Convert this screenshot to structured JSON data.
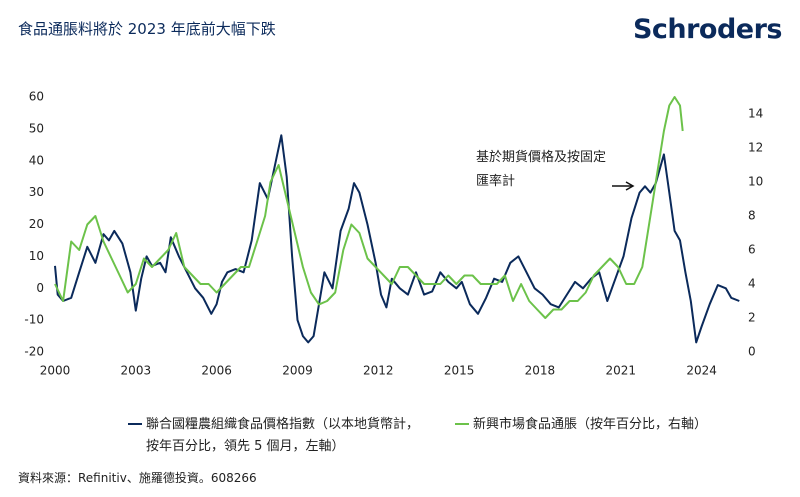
{
  "chart_data": {
    "type": "line",
    "title": "食品通脹料將於 2023 年底前大幅下跌",
    "brand": "Schroders",
    "annotation": "基於期貨價格及按固定匯率計",
    "source": "資料來源：Refinitiv、施羅德投資。608266",
    "xlim": [
      2000,
      2025.5
    ],
    "xticks": [
      2000,
      2003,
      2006,
      2009,
      2012,
      2015,
      2018,
      2021,
      2024
    ],
    "ylim": [
      -20,
      60
    ],
    "yticks": [
      -20,
      -10,
      0,
      10,
      20,
      30,
      40,
      50,
      60
    ],
    "y2lim": [
      0,
      15
    ],
    "y2ticks": [
      0,
      2,
      4,
      6,
      8,
      10,
      12,
      14
    ],
    "grid": false,
    "series": [
      {
        "name": "聯合國糧農組織食品價格指數（以本地貨幣計，按年百分比，領先 5 個月，左軸）",
        "color": "#0b2a5b",
        "x": [
          2000.0,
          2000.1,
          2000.3,
          2000.6,
          2000.9,
          2001.2,
          2001.5,
          2001.8,
          2002.0,
          2002.2,
          2002.5,
          2002.8,
          2003.0,
          2003.2,
          2003.4,
          2003.6,
          2003.9,
          2004.1,
          2004.3,
          2004.6,
          2004.9,
          2005.2,
          2005.5,
          2005.8,
          2006.0,
          2006.2,
          2006.4,
          2006.7,
          2007.0,
          2007.3,
          2007.6,
          2007.9,
          2008.2,
          2008.4,
          2008.6,
          2008.8,
          2009.0,
          2009.2,
          2009.4,
          2009.6,
          2009.8,
          2010.0,
          2010.3,
          2010.6,
          2010.9,
          2011.1,
          2011.3,
          2011.6,
          2011.9,
          2012.1,
          2012.3,
          2012.5,
          2012.8,
          2013.1,
          2013.4,
          2013.7,
          2014.0,
          2014.3,
          2014.6,
          2014.9,
          2015.1,
          2015.4,
          2015.7,
          2016.0,
          2016.3,
          2016.6,
          2016.9,
          2017.2,
          2017.5,
          2017.8,
          2018.1,
          2018.4,
          2018.7,
          2019.0,
          2019.3,
          2019.6,
          2019.9,
          2020.2,
          2020.5,
          2020.8,
          2021.1,
          2021.4,
          2021.7,
          2021.9,
          2022.1,
          2022.3,
          2022.6,
          2022.8,
          2023.0,
          2023.2,
          2023.4,
          2023.6,
          2023.8,
          2024.0,
          2024.3,
          2024.6,
          2024.9,
          2025.1,
          2025.4
        ],
        "values": [
          7,
          -2,
          -4,
          -3,
          5,
          13,
          8,
          17,
          15,
          18,
          14,
          5,
          -7,
          3,
          10,
          7,
          8,
          5,
          16,
          10,
          5,
          0,
          -3,
          -8,
          -5,
          2,
          5,
          6,
          5,
          15,
          33,
          28,
          40,
          48,
          35,
          10,
          -10,
          -15,
          -17,
          -15,
          -5,
          5,
          0,
          18,
          25,
          33,
          30,
          20,
          8,
          -2,
          -6,
          3,
          0,
          -2,
          5,
          -2,
          -1,
          5,
          2,
          0,
          2,
          -5,
          -8,
          -3,
          3,
          2,
          8,
          10,
          5,
          0,
          -2,
          -5,
          -6,
          -2,
          2,
          0,
          3,
          5,
          -4,
          3,
          10,
          22,
          30,
          32,
          30,
          33,
          42,
          30,
          18,
          15,
          5,
          -4,
          -17,
          -12,
          -5,
          1,
          0,
          -3,
          -4
        ]
      },
      {
        "name": "新興市場食品通脹（按年百分比，右軸）",
        "color": "#6cc24a",
        "axis": "y2",
        "x": [
          2000.0,
          2000.3,
          2000.6,
          2000.9,
          2001.2,
          2001.5,
          2001.8,
          2002.1,
          2002.4,
          2002.7,
          2003.0,
          2003.3,
          2003.6,
          2003.9,
          2004.2,
          2004.5,
          2004.8,
          2005.1,
          2005.4,
          2005.7,
          2006.0,
          2006.3,
          2006.6,
          2006.9,
          2007.2,
          2007.5,
          2007.8,
          2008.0,
          2008.3,
          2008.6,
          2008.9,
          2009.2,
          2009.5,
          2009.8,
          2010.1,
          2010.4,
          2010.7,
          2011.0,
          2011.3,
          2011.6,
          2011.9,
          2012.2,
          2012.5,
          2012.8,
          2013.1,
          2013.4,
          2013.7,
          2014.0,
          2014.3,
          2014.6,
          2014.9,
          2015.2,
          2015.5,
          2015.8,
          2016.1,
          2016.4,
          2016.7,
          2017.0,
          2017.3,
          2017.6,
          2017.9,
          2018.2,
          2018.5,
          2018.8,
          2019.1,
          2019.4,
          2019.7,
          2020.0,
          2020.3,
          2020.6,
          2020.9,
          2021.2,
          2021.5,
          2021.8,
          2022.0,
          2022.2,
          2022.4,
          2022.6,
          2022.8,
          2023.0,
          2023.2,
          2023.3
        ],
        "values": [
          4,
          3,
          6.5,
          6,
          7.5,
          8,
          6.5,
          5.5,
          4.5,
          3.5,
          4,
          5.5,
          5,
          5.5,
          6,
          7,
          5,
          4.5,
          4,
          4,
          3.5,
          4,
          4.5,
          5,
          5,
          6.5,
          8,
          10,
          11,
          9,
          7,
          5,
          3.5,
          2.8,
          3,
          3.5,
          6,
          7.5,
          7,
          5.5,
          5,
          4.5,
          4,
          5,
          5,
          4.5,
          4,
          4,
          4,
          4.5,
          4,
          4.5,
          4.5,
          4,
          4,
          4,
          4.5,
          3,
          4,
          3,
          2.5,
          2,
          2.5,
          2.5,
          3,
          3,
          3.5,
          4.5,
          5,
          5.5,
          5,
          4,
          4,
          5,
          7,
          9,
          11,
          13,
          14.5,
          15,
          14.5,
          13
        ]
      }
    ]
  }
}
